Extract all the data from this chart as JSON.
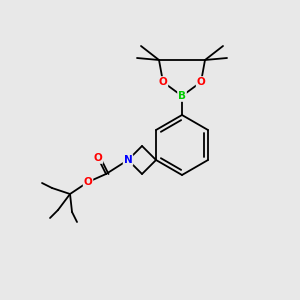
{
  "background_color": "#e8e8e8",
  "bond_color": "#000000",
  "atom_colors": {
    "O": "#ff0000",
    "N": "#0000ff",
    "B": "#00cc00",
    "C": "#000000"
  },
  "figsize": [
    3.0,
    3.0
  ],
  "dpi": 100
}
